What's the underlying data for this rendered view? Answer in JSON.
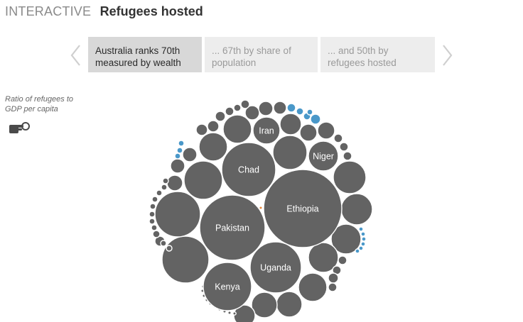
{
  "header": {
    "kicker": "INTERACTIVE",
    "title": "Refugees hosted"
  },
  "carousel": {
    "slides": [
      {
        "text": "Australia ranks 70th measured by wealth",
        "active": true
      },
      {
        "text": "... 67th by share of population",
        "active": false
      },
      {
        "text": "... and 50th by refugees hosted",
        "active": false
      }
    ],
    "prev_icon": "chevron-left-icon",
    "next_icon": "chevron-right-icon"
  },
  "sidebar": {
    "ratio_label": "Ratio of refugees to GDP per capita",
    "pointer_icon": "pointing-hand-icon"
  },
  "colors": {
    "bubble": "#636363",
    "highlight": "#4a98c9",
    "australia": "#e8873a"
  },
  "bubbles": {
    "labelled": [
      {
        "label": "Ethiopia"
      },
      {
        "label": "Pakistan"
      },
      {
        "label": "Chad"
      },
      {
        "label": "Uganda"
      },
      {
        "label": "Kenya"
      },
      {
        "label": "Iran"
      },
      {
        "label": "Niger"
      }
    ]
  }
}
